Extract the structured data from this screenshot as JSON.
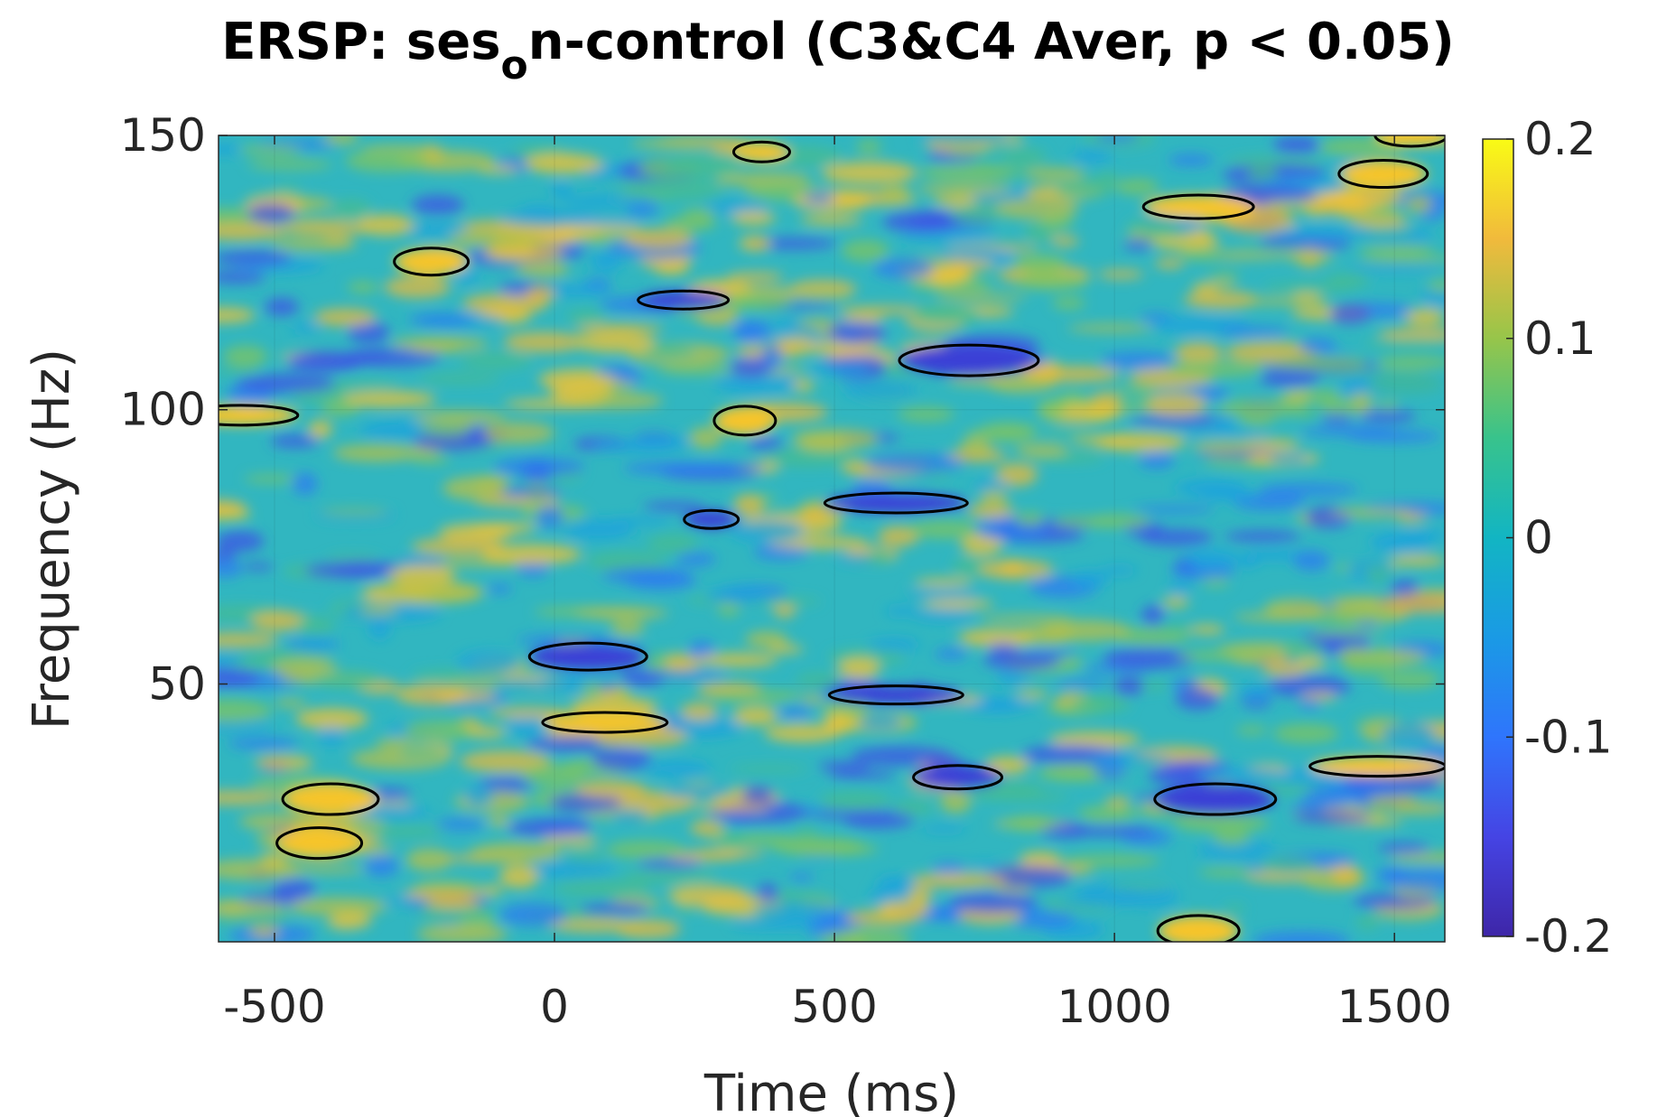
{
  "chart_data": {
    "type": "heatmap",
    "title_prefix": "ERSP: ses",
    "title_subscript": "o",
    "title_suffix": "n-control (C3&C4 Aver, p < 0.05)",
    "xlabel": "Time (ms)",
    "ylabel": "Frequency (Hz)",
    "xlim": [
      -600,
      1590
    ],
    "ylim": [
      3,
      150
    ],
    "xticks": [
      -500,
      0,
      500,
      1000,
      1500
    ],
    "xtick_labels": [
      "-500",
      "0",
      "500",
      "1000",
      "1500"
    ],
    "yticks": [
      50,
      100,
      150
    ],
    "ytick_labels": [
      "50",
      "100",
      "150"
    ],
    "colormap": "parula",
    "clim": [
      -0.2,
      0.2
    ],
    "colorbar_ticks": [
      -0.2,
      -0.1,
      0,
      0.1,
      0.2
    ],
    "colorbar_tick_labels": [
      "-0.2",
      "-0.1",
      "0",
      "0.1",
      "0.2"
    ],
    "significance_contours": "black outlines around regions with p < 0.05",
    "significant_regions": [
      {
        "time_ms": 370,
        "freq_hz": 147,
        "sign": "pos"
      },
      {
        "time_ms": 1150,
        "freq_hz": 137,
        "sign": "pos"
      },
      {
        "time_ms": 1480,
        "freq_hz": 143,
        "sign": "pos"
      },
      {
        "time_ms": -220,
        "freq_hz": 127,
        "sign": "pos"
      },
      {
        "time_ms": 230,
        "freq_hz": 120,
        "sign": "neg"
      },
      {
        "time_ms": 740,
        "freq_hz": 109,
        "sign": "neg"
      },
      {
        "time_ms": 340,
        "freq_hz": 98,
        "sign": "pos"
      },
      {
        "time_ms": -560,
        "freq_hz": 99,
        "sign": "pos"
      },
      {
        "time_ms": 280,
        "freq_hz": 80,
        "sign": "neg"
      },
      {
        "time_ms": 610,
        "freq_hz": 83,
        "sign": "neg"
      },
      {
        "time_ms": 60,
        "freq_hz": 55,
        "sign": "neg"
      },
      {
        "time_ms": 610,
        "freq_hz": 48,
        "sign": "neg"
      },
      {
        "time_ms": -420,
        "freq_hz": 21,
        "sign": "pos"
      },
      {
        "time_ms": -400,
        "freq_hz": 29,
        "sign": "pos"
      },
      {
        "time_ms": 1150,
        "freq_hz": 5,
        "sign": "pos"
      },
      {
        "time_ms": 1180,
        "freq_hz": 29,
        "sign": "neg"
      },
      {
        "time_ms": 720,
        "freq_hz": 33,
        "sign": "neg"
      },
      {
        "time_ms": 90,
        "freq_hz": 43,
        "sign": "pos"
      },
      {
        "time_ms": 1470,
        "freq_hz": 35,
        "sign": "pos"
      },
      {
        "time_ms": 1530,
        "freq_hz": 150,
        "sign": "pos"
      }
    ]
  }
}
